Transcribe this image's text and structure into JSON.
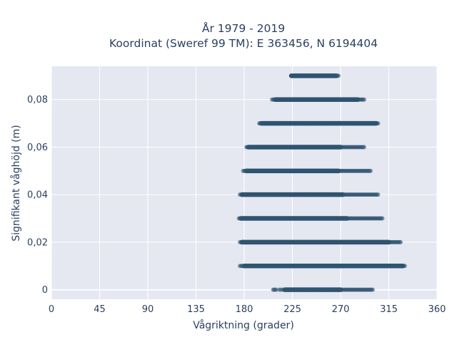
{
  "chart_data": {
    "type": "scatter",
    "title_line1": "År 1979 - 2019",
    "title_line2": "Koordinat (Sweref 99 TM): E 363456, N 6194404",
    "xlabel": "Vågriktning (grader)",
    "ylabel": "Signifikant våghöjd (m)",
    "xlim": [
      0,
      360
    ],
    "ylim": [
      -0.004,
      0.094
    ],
    "x_ticks": [
      0,
      45,
      90,
      135,
      180,
      225,
      270,
      315,
      360
    ],
    "x_tick_labels": [
      "0",
      "45",
      "90",
      "135",
      "180",
      "225",
      "270",
      "315",
      "360"
    ],
    "y_ticks": [
      0,
      0.02,
      0.04,
      0.06,
      0.08
    ],
    "y_tick_labels": [
      "0",
      "0,02",
      "0,04",
      "0,06",
      "0,08"
    ],
    "grid": true,
    "background": "#e5e8f1",
    "marker_color": "#2f5470",
    "series": [
      {
        "bands": [
          {
            "y": 0.09,
            "dense": [
              224,
              266
            ],
            "sparse": [
              [
                224,
                268
              ]
            ]
          },
          {
            "y": 0.08,
            "dense": [
              209,
              286
            ],
            "sparse": [
              [
                206,
                292
              ]
            ]
          },
          {
            "y": 0.07,
            "dense": [
              196,
              303
            ],
            "sparse": [
              [
                194,
                305
              ]
            ]
          },
          {
            "y": 0.06,
            "dense": [
              184,
              270
            ],
            "sparse": [
              [
                182,
                292
              ]
            ]
          },
          {
            "y": 0.05,
            "dense": [
              182,
              268
            ],
            "sparse": [
              [
                179,
                298
              ]
            ]
          },
          {
            "y": 0.04,
            "dense": [
              178,
              272
            ],
            "sparse": [
              [
                176,
                305
              ]
            ]
          },
          {
            "y": 0.03,
            "dense": [
              177,
              276
            ],
            "sparse": [
              [
                175,
                309
              ]
            ]
          },
          {
            "y": 0.02,
            "dense": [
              178,
              315
            ],
            "sparse": [
              [
                176,
                326
              ]
            ]
          },
          {
            "y": 0.01,
            "dense": [
              180,
              328
            ],
            "sparse": [
              [
                176,
                330
              ]
            ]
          },
          {
            "y": 0.0,
            "dense": [
              218,
              270
            ],
            "sparse": [
              [
                207,
                210
              ],
              [
                213,
                214
              ],
              [
                216,
                300
              ]
            ]
          }
        ]
      }
    ]
  }
}
